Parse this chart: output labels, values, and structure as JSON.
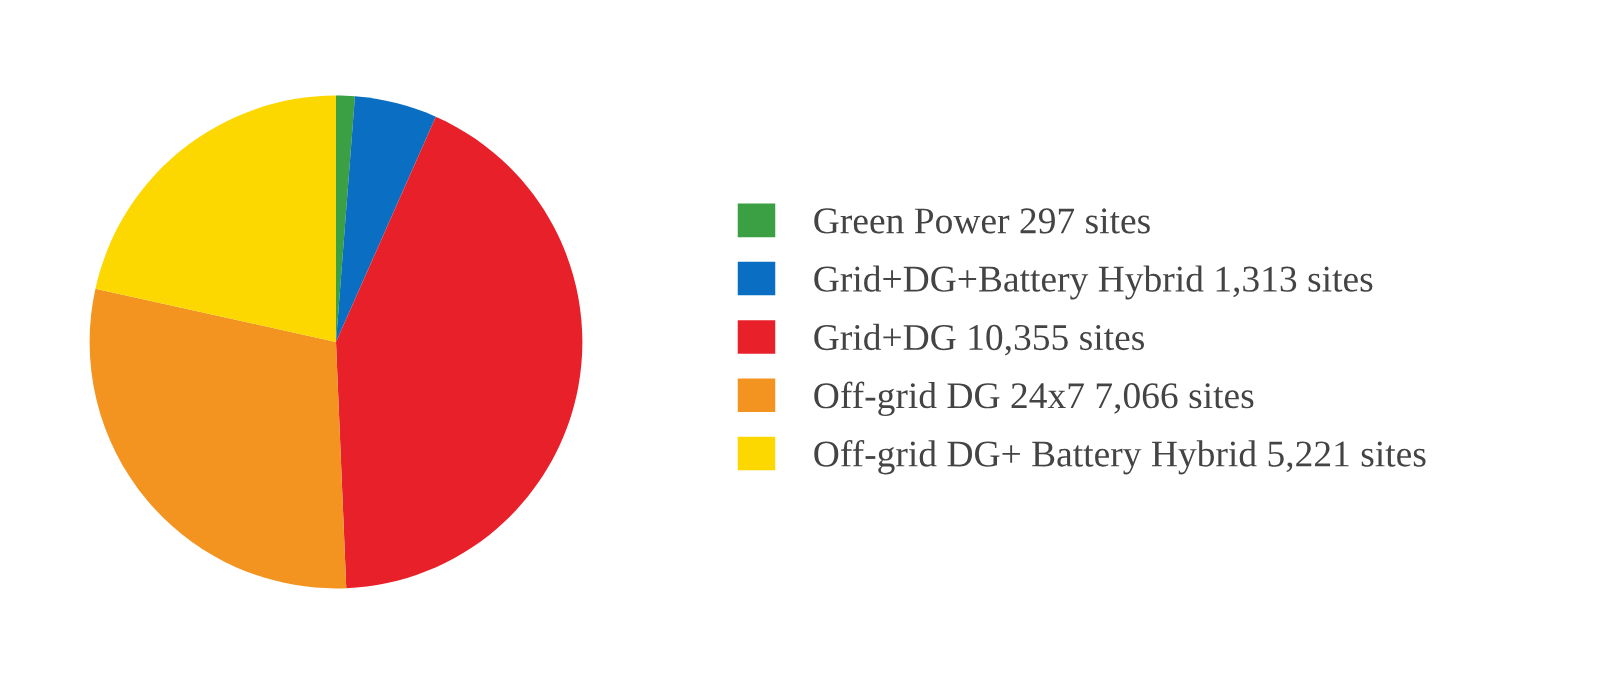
{
  "chart_data": {
    "type": "pie",
    "categories": [
      "Green Power 297 sites",
      "Grid+DG+Battery Hybrid 1,313 sites",
      "Grid+DG 10,355 sites",
      "Off-grid DG 24x7 7,066 sites",
      "Off-grid DG+ Battery Hybrid 5,221 sites"
    ],
    "values": [
      297,
      1313,
      10355,
      7066,
      5221
    ],
    "colors": [
      "#3aa043",
      "#0a6fc2",
      "#e8202a",
      "#f39420",
      "#fdd800"
    ],
    "legend": "right"
  }
}
